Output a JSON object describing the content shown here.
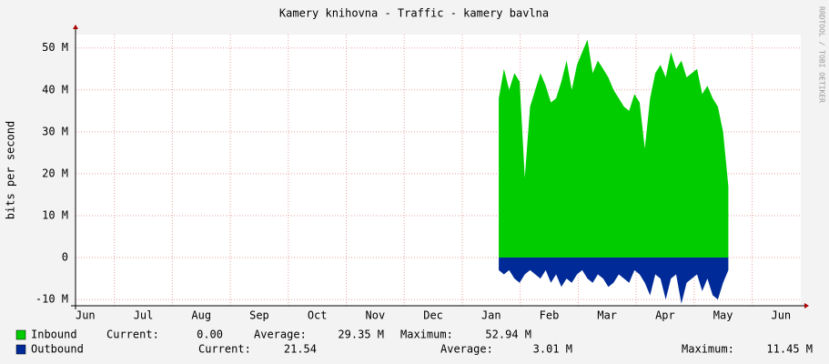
{
  "chart_data": {
    "type": "area",
    "title": "Kamery knihovna - Traffic - kamery bavlna",
    "y_label": "bits per second",
    "watermark": "RRDTOOL / TOBI OETIKER",
    "xlim": [
      0.33,
      12.84
    ],
    "xticks": [
      {
        "value": 0,
        "label": "Jun"
      },
      {
        "value": 1,
        "label": "Jul"
      },
      {
        "value": 2,
        "label": "Aug"
      },
      {
        "value": 3,
        "label": "Sep"
      },
      {
        "value": 4,
        "label": "Oct"
      },
      {
        "value": 5,
        "label": "Nov"
      },
      {
        "value": 6,
        "label": "Dec"
      },
      {
        "value": 7,
        "label": "Jan"
      },
      {
        "value": 8,
        "label": "Feb"
      },
      {
        "value": 9,
        "label": "Mar"
      },
      {
        "value": 10,
        "label": "Apr"
      },
      {
        "value": 11,
        "label": "May"
      },
      {
        "value": 12,
        "label": "Jun"
      }
    ],
    "ylim": [
      -11.5,
      53.2
    ],
    "yticks": [
      {
        "value": -10,
        "label": "-10 M"
      },
      0,
      {
        "value": 10,
        "label": "10 M"
      },
      {
        "value": 20,
        "label": "20 M"
      },
      {
        "value": 30,
        "label": "30 M"
      },
      {
        "value": 40,
        "label": "40 M"
      },
      {
        "value": 50,
        "label": "50 M"
      }
    ],
    "grid": true,
    "x": [
      7.63,
      7.72,
      7.81,
      7.9,
      7.99,
      8.08,
      8.17,
      8.26,
      8.35,
      8.44,
      8.53,
      8.62,
      8.71,
      8.8,
      8.89,
      8.98,
      9.07,
      9.16,
      9.25,
      9.34,
      9.43,
      9.52,
      9.61,
      9.7,
      9.79,
      9.88,
      9.97,
      10.06,
      10.15,
      10.24,
      10.33,
      10.42,
      10.51,
      10.6,
      10.69,
      10.78,
      10.87,
      10.96,
      11.05,
      11.14,
      11.23,
      11.32,
      11.41,
      11.5,
      11.59
    ],
    "series": [
      {
        "name": "Inbound",
        "color": "#00cc00",
        "values": [
          38,
          45,
          40,
          44,
          42,
          19,
          36,
          40,
          44,
          41,
          37,
          38,
          42,
          47,
          40,
          46,
          49,
          52,
          44,
          47,
          45,
          43,
          40,
          38,
          36,
          35,
          39,
          37,
          26,
          38,
          44,
          46,
          43,
          49,
          45,
          47,
          43,
          44,
          45,
          39,
          41,
          38,
          36,
          30,
          17
        ],
        "stats": [
          {
            "label": "Current:",
            "value": "0.00"
          },
          {
            "label": "Average:",
            "value": "29.35 M"
          },
          {
            "label": "Maximum:",
            "value": "52.94 M"
          }
        ]
      },
      {
        "name": "Outbound",
        "color": "#002a97",
        "values": [
          -3,
          -4,
          -3,
          -5,
          -6,
          -4,
          -3,
          -4,
          -5,
          -3,
          -6,
          -4,
          -7,
          -5,
          -6,
          -4,
          -3,
          -5,
          -6,
          -4,
          -5,
          -7,
          -6,
          -4,
          -5,
          -6,
          -3,
          -4,
          -6,
          -9,
          -4,
          -5,
          -10,
          -5,
          -4,
          -11,
          -6,
          -5,
          -4,
          -8,
          -5,
          -9,
          -10,
          -6,
          -3
        ],
        "stats": [
          {
            "label": "Current:",
            "value": "21.54"
          },
          {
            "label": "Average:",
            "value": "3.01 M"
          },
          {
            "label": "Maximum:",
            "value": "11.45 M"
          }
        ]
      }
    ]
  }
}
